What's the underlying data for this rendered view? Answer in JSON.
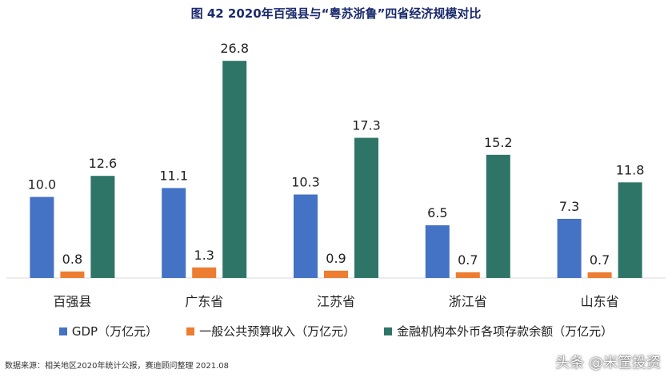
{
  "title": "图 42  2020年百强县与“粤苏浙鲁”四省经济规模对比",
  "source": "数据来源：相关地区2020年统计公报，赛迪顾问整理  2021.08",
  "watermark": "头条 @米筐投资",
  "colors": {
    "gdp": "#4472c4",
    "budget": "#ed7d31",
    "deposits": "#2e7567"
  },
  "chart_data": {
    "type": "bar",
    "title": "图 42  2020年百强县与“粤苏浙鲁”四省经济规模对比",
    "categories": [
      "百强县",
      "广东省",
      "江苏省",
      "浙江省",
      "山东省"
    ],
    "series": [
      {
        "name": "GDP（万亿元）",
        "values": [
          10.0,
          11.1,
          10.3,
          6.5,
          7.3
        ]
      },
      {
        "name": "一般公共预算收入（万亿元）",
        "values": [
          0.8,
          1.3,
          0.9,
          0.7,
          0.7
        ]
      },
      {
        "name": "金融机构本外币各项存款余额（万亿元）",
        "values": [
          12.6,
          26.8,
          17.3,
          15.2,
          11.8
        ]
      }
    ],
    "value_labels": [
      [
        "10.0",
        "11.1",
        "10.3",
        "6.5",
        "7.3"
      ],
      [
        "0.8",
        "1.3",
        "0.9",
        "0.7",
        "0.7"
      ],
      [
        "12.6",
        "26.8",
        "17.3",
        "15.2",
        "11.8"
      ]
    ],
    "ylim": [
      0,
      28
    ],
    "grid": false,
    "legend_position": "bottom"
  }
}
